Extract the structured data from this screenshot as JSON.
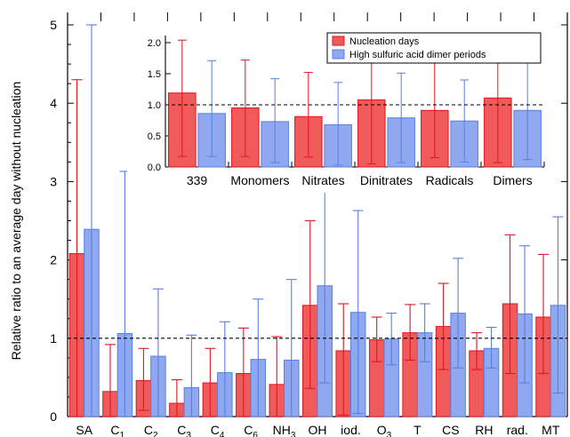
{
  "chart_data": [
    {
      "type": "bar",
      "ylabel": "Relative ratio to an average day without nucleation",
      "ylim": [
        0,
        5
      ],
      "yticks": [
        "0",
        "1",
        "2",
        "3",
        "4",
        "5"
      ],
      "reference_line": 1,
      "categories": [
        "SA",
        "C1",
        "C2",
        "C3",
        "C4",
        "C6",
        "NH3",
        "OH",
        "iod.",
        "O3",
        "T",
        "CS",
        "RH",
        "rad.",
        "MT"
      ],
      "category_labels": [
        {
          "main": "SA",
          "sub": ""
        },
        {
          "main": "C",
          "sub": "1"
        },
        {
          "main": "C",
          "sub": "2"
        },
        {
          "main": "C",
          "sub": "3"
        },
        {
          "main": "C",
          "sub": "4"
        },
        {
          "main": "C",
          "sub": "6"
        },
        {
          "main": "NH",
          "sub": "3"
        },
        {
          "main": "OH",
          "sub": ""
        },
        {
          "main": "iod.",
          "sub": ""
        },
        {
          "main": "O",
          "sub": "3"
        },
        {
          "main": "T",
          "sub": ""
        },
        {
          "main": "CS",
          "sub": ""
        },
        {
          "main": "RH",
          "sub": ""
        },
        {
          "main": "rad.",
          "sub": ""
        },
        {
          "main": "MT",
          "sub": ""
        }
      ],
      "series": [
        {
          "name": "Nucleation days",
          "color": "#f05a5a",
          "values": [
            2.08,
            0.32,
            0.46,
            0.17,
            0.43,
            0.55,
            0.41,
            1.42,
            0.84,
            0.98,
            1.07,
            1.15,
            0.84,
            1.44,
            1.27
          ],
          "err_low": [
            0,
            0,
            0.08,
            0.0,
            0.0,
            0.0,
            0.0,
            0.36,
            0.02,
            0.7,
            0.72,
            0.6,
            0.6,
            0.55,
            0.55
          ],
          "err_high": [
            4.3,
            0.92,
            0.87,
            0.47,
            0.87,
            1.13,
            1.02,
            2.5,
            1.44,
            1.27,
            1.43,
            1.7,
            1.07,
            2.32,
            2.07
          ]
        },
        {
          "name": "High sulfuric acid dimer periods",
          "color": "#8fa8f0",
          "values": [
            2.39,
            1.06,
            0.77,
            0.37,
            0.56,
            0.73,
            0.72,
            1.67,
            1.33,
            0.99,
            1.07,
            1.32,
            0.87,
            1.31,
            1.42
          ],
          "err_low": [
            0,
            0,
            0,
            0,
            0,
            0,
            0,
            0.43,
            0.04,
            0.66,
            0.7,
            0.62,
            0.62,
            0.43,
            0.3
          ],
          "err_high": [
            5.0,
            3.13,
            1.63,
            1.04,
            1.21,
            1.5,
            1.75,
            3.0,
            2.63,
            1.32,
            1.44,
            2.02,
            1.14,
            2.18,
            2.55
          ]
        }
      ]
    },
    {
      "type": "bar",
      "ylim": [
        0,
        2.0
      ],
      "yticks": [
        "0.0",
        "0.5",
        "1.0",
        "1.5",
        "2.0"
      ],
      "reference_line": 1,
      "categories": [
        "339",
        "Monomers",
        "Nitrates",
        "Dinitrates",
        "Radicals",
        "Dimers"
      ],
      "series": [
        {
          "name": "Nucleation days",
          "color": "#f05a5a",
          "values": [
            1.19,
            0.95,
            0.81,
            1.08,
            0.91,
            1.11
          ],
          "err_low": [
            0.17,
            0.17,
            0.16,
            0.05,
            0.15,
            0.07
          ],
          "err_high": [
            2.04,
            1.72,
            1.52,
            2.0,
            1.72,
            2.0
          ]
        },
        {
          "name": "High sulfuric acid dimer periods",
          "color": "#8fa8f0",
          "values": [
            0.86,
            0.73,
            0.68,
            0.79,
            0.74,
            0.91
          ],
          "err_low": [
            0.17,
            0.07,
            0.03,
            0.07,
            0.08,
            0.12
          ],
          "err_high": [
            1.71,
            1.42,
            1.36,
            1.51,
            1.4,
            2.0
          ]
        }
      ],
      "legend_position": "top-right"
    }
  ]
}
